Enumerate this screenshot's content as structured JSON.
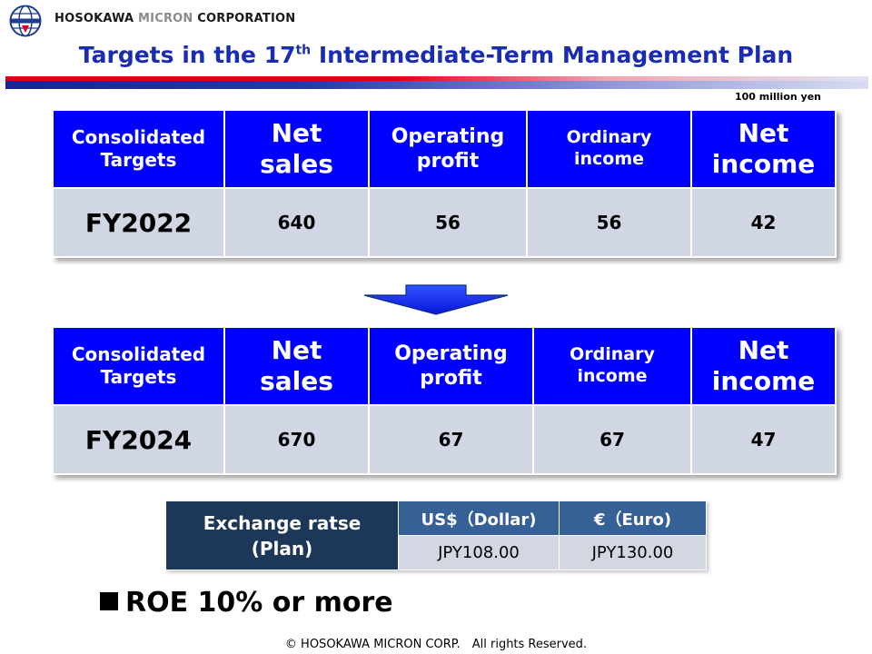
{
  "header": {
    "company_part1": "HOSOKAWA ",
    "company_part2": "MICRON",
    "company_part3": " CORPORATION",
    "logo_icon": "globe-logo-icon",
    "title_pre": "Targets in the 17",
    "title_sup": "th",
    "title_post": " Intermediate-Term Management Plan",
    "unit": "100 million yen"
  },
  "colors": {
    "title": "#1a2db0",
    "table_header": "#0000ff",
    "table_body": "#d0d6e4",
    "fx_label": "#1c3758",
    "fx_header": "#356196",
    "arrow": "#0000ff"
  },
  "table1": {
    "headers": {
      "h0_l1": "Consolidated",
      "h0_l2": "Targets",
      "h1_l1": "Net",
      "h1_l2": "sales",
      "h2_l1": "Operating",
      "h2_l2": "profit",
      "h3_l1": "Ordinary",
      "h3_l2": "income",
      "h4_l1": "Net",
      "h4_l2": "income"
    },
    "row": {
      "year": "FY2022",
      "net_sales": "640",
      "operating_profit": "56",
      "ordinary_income": "56",
      "net_income": "42"
    }
  },
  "arrow_icon": "down-arrow-icon",
  "table2": {
    "headers": {
      "h0_l1": "Consolidated",
      "h0_l2": "Targets",
      "h1_l1": "Net",
      "h1_l2": "sales",
      "h2_l1": "Operating",
      "h2_l2": "profit",
      "h3_l1": "Ordinary",
      "h3_l2": "income",
      "h4_l1": "Net",
      "h4_l2": "income"
    },
    "row": {
      "year": "FY2024",
      "net_sales": "670",
      "operating_profit": "67",
      "ordinary_income": "67",
      "net_income": "47"
    }
  },
  "exchange": {
    "label_l1": "Exchange ratse",
    "label_l2": "(Plan)",
    "usd_header": "US$（Dollar)",
    "eur_header": "€（Euro)",
    "usd_value": "JPY108.00",
    "eur_value": "JPY130.00"
  },
  "roe": {
    "bullet_icon": "black-square-bullet-icon",
    "text": "ROE 10% or more"
  },
  "footer": {
    "copyright": "© HOSOKAWA MICRON CORP.　All rights Reserved."
  }
}
